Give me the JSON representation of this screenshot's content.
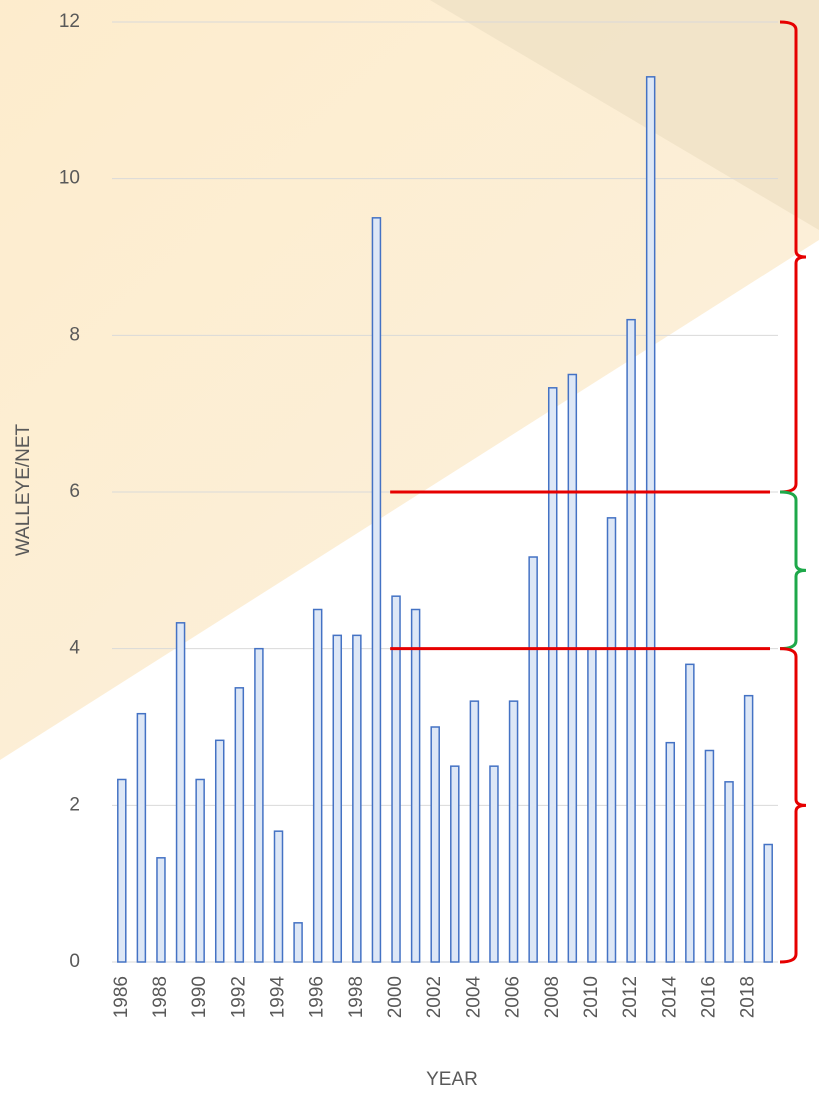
{
  "chart_data": {
    "type": "bar",
    "x_label": "YEAR",
    "y_label": "WALLEYE/NET",
    "categories": [
      "1986",
      null,
      "1988",
      null,
      "1990",
      null,
      "1992",
      null,
      "1994",
      null,
      "1996",
      null,
      "1998",
      null,
      "2000",
      null,
      "2002",
      null,
      "2004",
      null,
      "2006",
      null,
      "2008",
      null,
      "2010",
      null,
      "2012",
      null,
      "2014",
      null,
      "2016",
      null,
      "2018",
      null
    ],
    "values": [
      2.33,
      3.17,
      1.33,
      4.33,
      2.33,
      2.83,
      3.5,
      4.0,
      1.67,
      0.5,
      4.5,
      4.17,
      4.17,
      9.5,
      4.67,
      4.5,
      3.0,
      2.5,
      3.33,
      2.5,
      3.33,
      5.17,
      7.33,
      7.5,
      4.0,
      5.67,
      8.2,
      11.3,
      2.8,
      3.8,
      2.7,
      2.3,
      3.4,
      1.5
    ],
    "color": "#4472c4",
    "fill": "#dde7f6",
    "ylim": [
      0,
      12
    ],
    "yticks": [
      0,
      2,
      4,
      6,
      8,
      10,
      12
    ],
    "grid": true,
    "reference_lines": [
      {
        "value": 6,
        "from": "2000",
        "color": "#e60000"
      },
      {
        "value": 4,
        "from": "2000",
        "color": "#e60000"
      }
    ],
    "brackets": [
      {
        "range": [
          6,
          12
        ],
        "color": "#e60000"
      },
      {
        "range": [
          4,
          6
        ],
        "color": "#1ea84a"
      },
      {
        "range": [
          0,
          4
        ],
        "color": "#e60000"
      }
    ]
  }
}
